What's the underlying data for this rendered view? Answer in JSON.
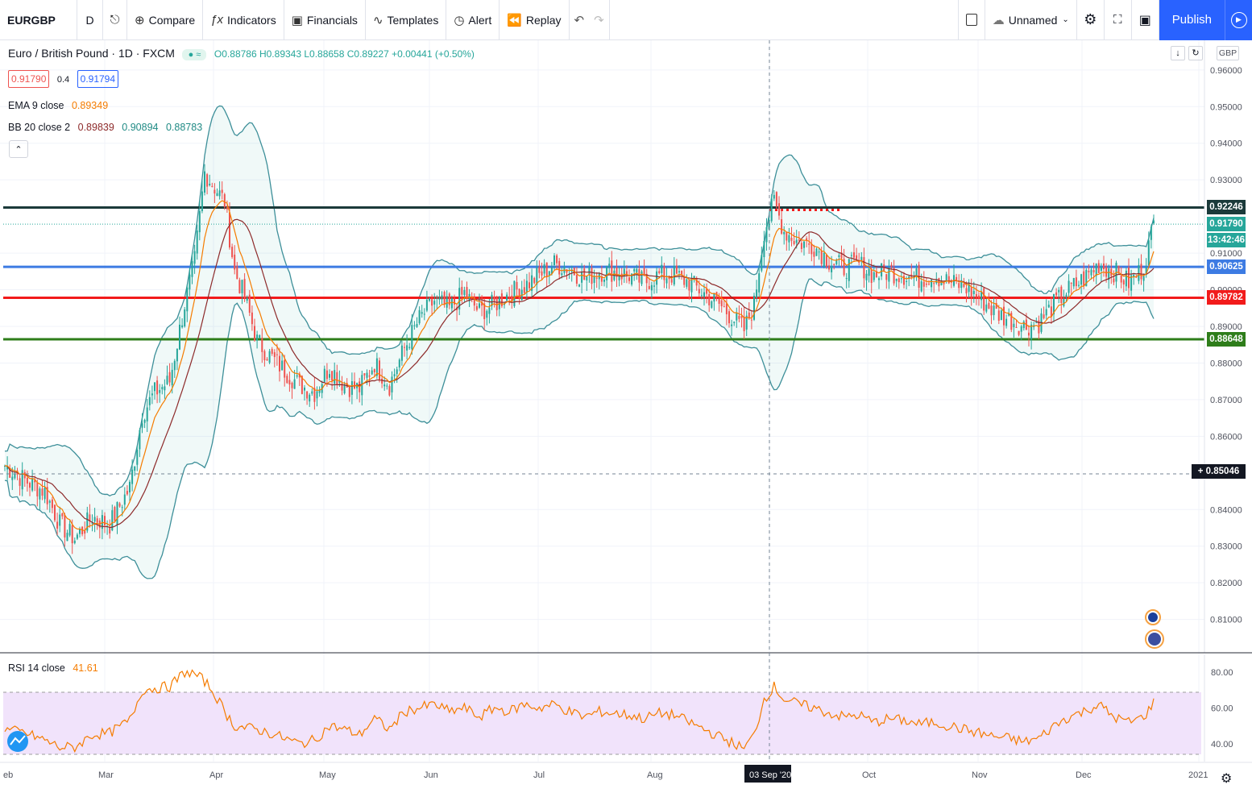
{
  "toolbar": {
    "symbol": "EURGBP",
    "interval": "D",
    "compare": "Compare",
    "indicators": "Indicators",
    "financials": "Financials",
    "templates": "Templates",
    "alert": "Alert",
    "replay": "Replay",
    "layout_name": "Unnamed",
    "publish": "Publish"
  },
  "legend": {
    "title": "Euro / British Pound · 1D · FXCM",
    "ohlc": "O0.88786 H0.89343 L0.88658 C0.89227 +0.00441 (+0.50%)",
    "bid": "0.91790",
    "spread": "0.4",
    "ask": "0.91794",
    "ema": "EMA 9 close",
    "ema_value": "0.89349",
    "bb": "BB 20 close 2",
    "bb_basis": "0.89839",
    "bb_upper": "0.90894",
    "bb_lower": "0.88783",
    "rsi": "RSI 14 close",
    "rsi_value": "41.61",
    "currency": "GBP"
  },
  "price_axis": [
    "0.96000",
    "0.95000",
    "0.94000",
    "0.93000",
    "0.91000",
    "0.90000",
    "0.89000",
    "0.88000",
    "0.87000",
    "0.86000",
    "0.84000",
    "0.83000",
    "0.82000",
    "0.81000"
  ],
  "rsi_axis": [
    "80.00",
    "60.00",
    "40.00"
  ],
  "time_axis": [
    "eb",
    "Mar",
    "Apr",
    "May",
    "Jun",
    "Jul",
    "Aug",
    "03 Sep '20",
    "Oct",
    "Nov",
    "Dec",
    "2021"
  ],
  "levels": [
    {
      "value": "0.92246",
      "color": "#1b3a3a"
    },
    {
      "value": "0.91790",
      "color": "#26a69a"
    },
    {
      "value": "13:42:46",
      "color": "#26a69a"
    },
    {
      "value": "0.90625",
      "color": "#3d7be3"
    },
    {
      "value": "0.89782",
      "color": "#f21b1b"
    },
    {
      "value": "0.88648",
      "color": "#2e7d1a"
    },
    {
      "value": "0.85046",
      "color": "#131722"
    }
  ],
  "chart_data": {
    "type": "candlestick",
    "symbol": "EURGBP",
    "ylim": [
      0.802,
      0.967
    ],
    "rsi_ylim": [
      30,
      90
    ],
    "key_levels": [
      0.92246,
      0.90625,
      0.89782,
      0.88648
    ],
    "close_path": [
      [
        0,
        0.852
      ],
      [
        8,
        0.848
      ],
      [
        16,
        0.845
      ],
      [
        22,
        0.836
      ],
      [
        28,
        0.832
      ],
      [
        35,
        0.838
      ],
      [
        42,
        0.836
      ],
      [
        50,
        0.846
      ],
      [
        55,
        0.866
      ],
      [
        60,
        0.872
      ],
      [
        66,
        0.875
      ],
      [
        72,
        0.896
      ],
      [
        76,
        0.908
      ],
      [
        80,
        0.932
      ],
      [
        84,
        0.928
      ],
      [
        88,
        0.924
      ],
      [
        92,
        0.905
      ],
      [
        96,
        0.898
      ],
      [
        101,
        0.886
      ],
      [
        106,
        0.882
      ],
      [
        112,
        0.878
      ],
      [
        118,
        0.874
      ],
      [
        124,
        0.872
      ],
      [
        130,
        0.879
      ],
      [
        136,
        0.874
      ],
      [
        142,
        0.873
      ],
      [
        148,
        0.88
      ],
      [
        154,
        0.874
      ],
      [
        160,
        0.884
      ],
      [
        166,
        0.892
      ],
      [
        172,
        0.897
      ],
      [
        178,
        0.895
      ],
      [
        184,
        0.899
      ],
      [
        190,
        0.894
      ],
      [
        196,
        0.896
      ],
      [
        202,
        0.899
      ],
      [
        208,
        0.901
      ],
      [
        214,
        0.904
      ],
      [
        220,
        0.907
      ],
      [
        226,
        0.906
      ],
      [
        232,
        0.903
      ],
      [
        238,
        0.905
      ],
      [
        244,
        0.905
      ],
      [
        250,
        0.904
      ],
      [
        256,
        0.902
      ],
      [
        262,
        0.904
      ],
      [
        268,
        0.904
      ],
      [
        274,
        0.902
      ],
      [
        280,
        0.899
      ],
      [
        286,
        0.896
      ],
      [
        292,
        0.892
      ],
      [
        296,
        0.889
      ],
      [
        300,
        0.896
      ],
      [
        304,
        0.916
      ],
      [
        308,
        0.924
      ],
      [
        312,
        0.916
      ],
      [
        318,
        0.913
      ],
      [
        324,
        0.912
      ],
      [
        330,
        0.908
      ],
      [
        336,
        0.906
      ],
      [
        342,
        0.907
      ],
      [
        348,
        0.904
      ],
      [
        354,
        0.905
      ],
      [
        360,
        0.904
      ],
      [
        366,
        0.903
      ],
      [
        372,
        0.904
      ],
      [
        378,
        0.902
      ],
      [
        384,
        0.901
      ],
      [
        390,
        0.898
      ],
      [
        396,
        0.894
      ],
      [
        402,
        0.892
      ],
      [
        408,
        0.89
      ],
      [
        414,
        0.891
      ],
      [
        420,
        0.896
      ],
      [
        426,
        0.9
      ],
      [
        432,
        0.903
      ],
      [
        438,
        0.907
      ],
      [
        444,
        0.905
      ],
      [
        450,
        0.902
      ],
      [
        456,
        0.906
      ],
      [
        460,
        0.918
      ]
    ],
    "rsi_path": [
      [
        0,
        48
      ],
      [
        8,
        46
      ],
      [
        16,
        42
      ],
      [
        22,
        38
      ],
      [
        28,
        38
      ],
      [
        35,
        45
      ],
      [
        42,
        46
      ],
      [
        50,
        53
      ],
      [
        55,
        70
      ],
      [
        60,
        71
      ],
      [
        66,
        72
      ],
      [
        72,
        80
      ],
      [
        76,
        79
      ],
      [
        80,
        75
      ],
      [
        84,
        68
      ],
      [
        88,
        58
      ],
      [
        92,
        50
      ],
      [
        96,
        49
      ],
      [
        101,
        48
      ],
      [
        106,
        46
      ],
      [
        112,
        43
      ],
      [
        118,
        40
      ],
      [
        124,
        42
      ],
      [
        130,
        50
      ],
      [
        136,
        48
      ],
      [
        142,
        45
      ],
      [
        148,
        54
      ],
      [
        154,
        48
      ],
      [
        160,
        58
      ],
      [
        166,
        60
      ],
      [
        172,
        62
      ],
      [
        178,
        58
      ],
      [
        184,
        60
      ],
      [
        190,
        55
      ],
      [
        196,
        60
      ],
      [
        202,
        58
      ],
      [
        208,
        62
      ],
      [
        214,
        60
      ],
      [
        220,
        62
      ],
      [
        226,
        58
      ],
      [
        232,
        55
      ],
      [
        238,
        58
      ],
      [
        244,
        57
      ],
      [
        250,
        56
      ],
      [
        256,
        54
      ],
      [
        262,
        57
      ],
      [
        268,
        56
      ],
      [
        274,
        52
      ],
      [
        280,
        48
      ],
      [
        286,
        44
      ],
      [
        292,
        40
      ],
      [
        296,
        37
      ],
      [
        300,
        45
      ],
      [
        304,
        65
      ],
      [
        308,
        72
      ],
      [
        312,
        65
      ],
      [
        318,
        62
      ],
      [
        324,
        60
      ],
      [
        330,
        57
      ],
      [
        336,
        55
      ],
      [
        342,
        56
      ],
      [
        348,
        52
      ],
      [
        354,
        54
      ],
      [
        360,
        53
      ],
      [
        366,
        51
      ],
      [
        372,
        52
      ],
      [
        378,
        50
      ],
      [
        384,
        48
      ],
      [
        390,
        46
      ],
      [
        396,
        44
      ],
      [
        402,
        43
      ],
      [
        408,
        41
      ],
      [
        414,
        43
      ],
      [
        420,
        50
      ],
      [
        426,
        55
      ],
      [
        432,
        58
      ],
      [
        438,
        62
      ],
      [
        444,
        55
      ],
      [
        450,
        52
      ],
      [
        456,
        55
      ],
      [
        460,
        63
      ]
    ]
  }
}
